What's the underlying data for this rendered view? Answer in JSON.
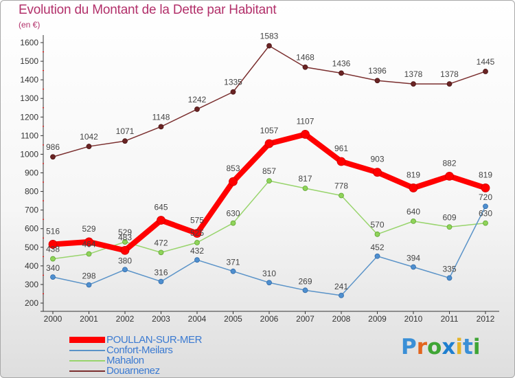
{
  "title": "Evolution du Montant de la Dette par Habitant",
  "subtitle": "(en €)",
  "logo": {
    "text": "Proxiti",
    "colors": [
      "#3a8fd6",
      "#e2651e",
      "#3fa535",
      "#1f7fcf",
      "#e4b42a",
      "#3a8fd6",
      "#3fa535"
    ]
  },
  "chart_data": {
    "type": "line",
    "title": "Evolution du Montant de la Dette par Habitant",
    "ylabel": "(en €)",
    "x": [
      "2000",
      "2001",
      "2002",
      "2003",
      "2004",
      "2005",
      "2006",
      "2007",
      "2008",
      "2009",
      "2010",
      "2011",
      "2012"
    ],
    "ylim": [
      200,
      1600
    ],
    "yticks": [
      200,
      300,
      400,
      500,
      600,
      700,
      800,
      900,
      1000,
      1100,
      1200,
      1300,
      1400,
      1500,
      1600
    ],
    "grid": false,
    "legend_position": "bottom-left",
    "series": [
      {
        "name": "POULLAN-SUR-MER",
        "color": "#ff0000",
        "values": [
          516,
          529,
          483,
          645,
          575,
          853,
          1057,
          1107,
          961,
          903,
          819,
          882,
          819
        ]
      },
      {
        "name": "Confort-Meilars",
        "color": "#5a93c8",
        "values": [
          340,
          298,
          380,
          316,
          432,
          371,
          310,
          269,
          241,
          452,
          394,
          335,
          720
        ]
      },
      {
        "name": "Mahalon",
        "color": "#98d46c",
        "values": [
          438,
          464,
          529,
          472,
          525,
          630,
          857,
          817,
          778,
          570,
          640,
          609,
          630
        ]
      },
      {
        "name": "Douarnenez",
        "color": "#7a2e2e",
        "values": [
          986,
          1042,
          1071,
          1148,
          1242,
          1335,
          1583,
          1468,
          1436,
          1396,
          1378,
          1378,
          1445
        ]
      }
    ]
  }
}
